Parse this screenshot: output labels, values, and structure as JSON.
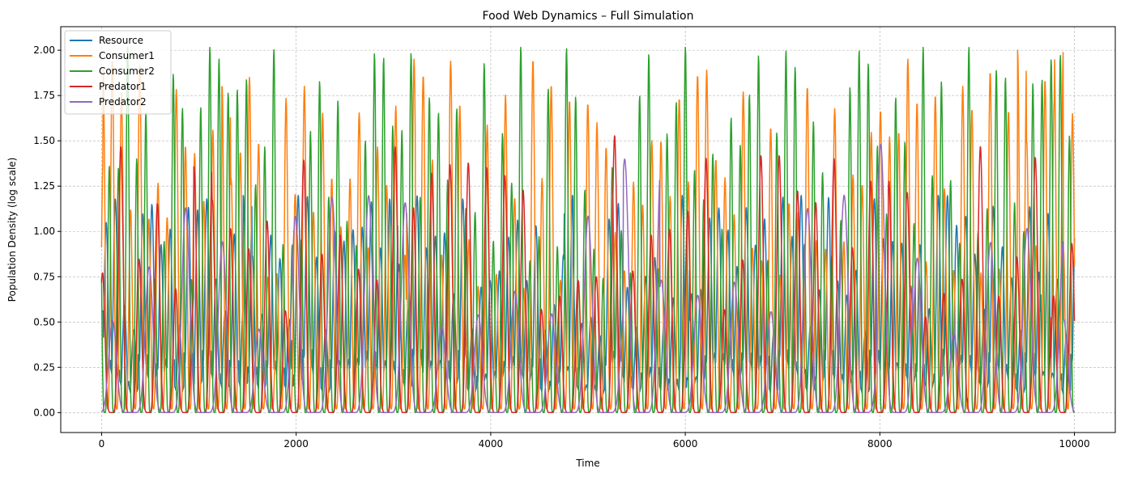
{
  "chart_data": {
    "type": "line",
    "title": "Food Web Dynamics – Full Simulation",
    "xlabel": "Time",
    "ylabel": "Population Density (log scale)",
    "xlim": [
      -420,
      10420
    ],
    "ylim": [
      -0.11,
      2.13
    ],
    "xticks": [
      0,
      2000,
      4000,
      6000,
      8000,
      10000
    ],
    "xtick_labels": [
      "0",
      "2000",
      "4000",
      "6000",
      "8000",
      "10000"
    ],
    "yticks": [
      0.0,
      0.25,
      0.5,
      0.75,
      1.0,
      1.25,
      1.5,
      1.75,
      2.0
    ],
    "ytick_labels": [
      "0.00",
      "0.25",
      "0.50",
      "0.75",
      "1.00",
      "1.25",
      "1.50",
      "1.75",
      "2.00"
    ],
    "grid": true,
    "legend_position": "top-left",
    "series": [
      {
        "name": "Resource",
        "color": "#1f77b4",
        "min": 0.02,
        "max": 1.2,
        "period": 94,
        "phase": 0.0,
        "sharp": 2.0,
        "offset": 0.35,
        "spikes": [
          [
            60,
            1.05
          ],
          [
            150,
            1.18
          ],
          [
            510,
            1.15
          ],
          [
            1000,
            1.12
          ],
          [
            1500,
            1.2
          ],
          [
            2000,
            1.2
          ],
          [
            3000,
            1.18
          ],
          [
            4800,
            1.2
          ],
          [
            6000,
            1.2
          ],
          [
            7200,
            1.2
          ],
          [
            8600,
            1.2
          ],
          [
            9700,
            1.1
          ]
        ]
      },
      {
        "name": "Consumer1",
        "color": "#ff7f0e",
        "min": 0.02,
        "max": 1.95,
        "period": 94,
        "phase": 0.33,
        "sharp": 3.0,
        "offset": 0.0,
        "spikes": [
          [
            60,
            1.9
          ],
          [
            100,
            1.95
          ],
          [
            960,
            1.43
          ],
          [
            1280,
            1.81
          ],
          [
            1600,
            1.49
          ],
          [
            3180,
            1.95
          ],
          [
            4640,
            1.81
          ],
          [
            5100,
            1.6
          ],
          [
            6200,
            1.89
          ],
          [
            8300,
            1.95
          ],
          [
            9460,
            2.0
          ],
          [
            9840,
            2.0
          ],
          [
            9960,
            1.65
          ]
        ]
      },
      {
        "name": "Consumer2",
        "color": "#2ca02c",
        "min": 0.0,
        "max": 2.02,
        "period": 94,
        "phase": 0.66,
        "sharp": 4.0,
        "offset": 0.0,
        "spikes": [
          [
            280,
            2.02
          ],
          [
            1080,
            2.02
          ],
          [
            2220,
            1.83
          ],
          [
            2930,
            1.96
          ],
          [
            3370,
            1.74
          ],
          [
            4330,
            2.02
          ],
          [
            5550,
            1.75
          ],
          [
            6020,
            2.02
          ],
          [
            7020,
            2.0
          ],
          [
            7810,
            2.0
          ],
          [
            8450,
            2.02
          ],
          [
            8930,
            2.02
          ],
          [
            9770,
            1.95
          ]
        ]
      },
      {
        "name": "Predator1",
        "color": "#d62728",
        "min": 0.0,
        "max": 1.47,
        "period": 188,
        "phase": 0.45,
        "sharp": 6.0,
        "offset": 0.0,
        "spikes": [
          [
            225,
            1.47
          ],
          [
            1040,
            1.36
          ],
          [
            3000,
            1.47
          ],
          [
            4210,
            1.31
          ],
          [
            5230,
            1.53
          ],
          [
            8180,
            1.28
          ],
          [
            8990,
            1.47
          ],
          [
            9660,
            1.41
          ]
        ]
      },
      {
        "name": "Predator2",
        "color": "#9467bd",
        "min": 0.0,
        "max": 1.2,
        "period": 376,
        "phase": 0.2,
        "sharp": 9.0,
        "offset": 0.0,
        "spikes": [
          [
            890,
            1.13
          ],
          [
            3180,
            1.06
          ],
          [
            5550,
            1.4
          ],
          [
            6480,
            0.72
          ],
          [
            7640,
            1.2
          ],
          [
            8150,
            1.48
          ],
          [
            9700,
            0.95
          ]
        ]
      }
    ]
  }
}
